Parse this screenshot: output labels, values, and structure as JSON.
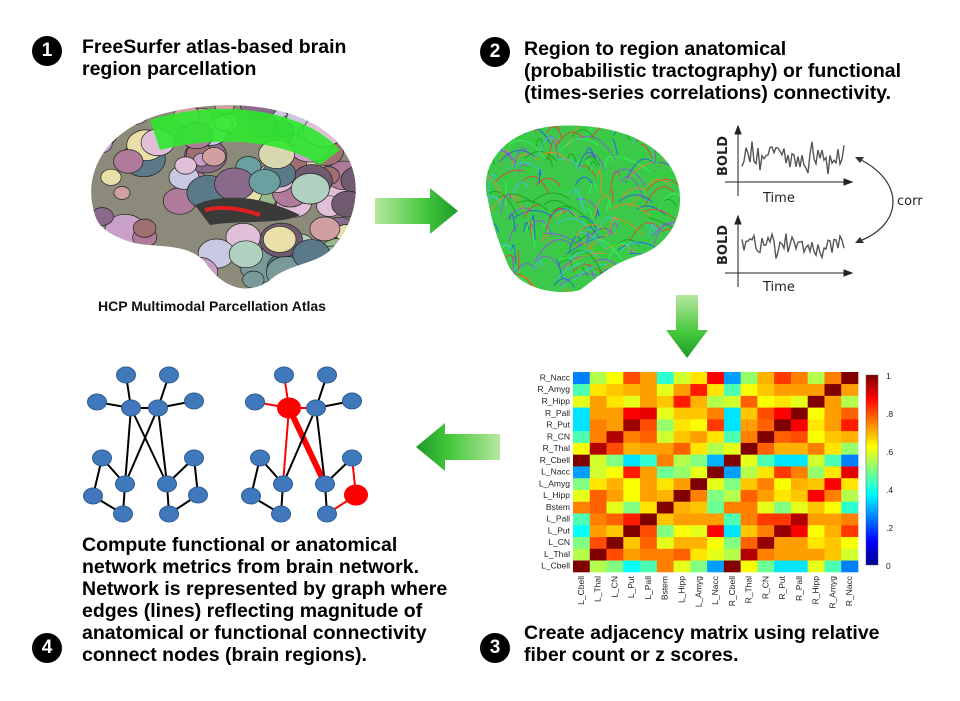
{
  "steps": [
    {
      "number": "1",
      "title": "FreeSurfer atlas-based brain\nregion parcellation",
      "caption": "HCP Multimodal Parcellation Atlas"
    },
    {
      "number": "2",
      "title": "Region to region anatomical\n(probabilistic tractography) or functional\n(times-series correlations) connectivity."
    },
    {
      "number": "3",
      "title": "Create adjacency matrix using relative\nfiber count or z scores."
    },
    {
      "number": "4",
      "title": "Compute functional or anatomical\nnetwork metrics from brain network.\nNetwork is represented by graph where\nedges (lines) reflecting magnitude of\nanatomical or functional connectivity\nconnect nodes (brain regions)."
    }
  ],
  "timeseries": {
    "ylabel": "BOLD",
    "xlabel": "Time",
    "corr_label": "corr"
  },
  "matrix": {
    "columns": [
      "L_Cbell",
      "L_Thal",
      "L_CN",
      "L_Put",
      "L_Pall",
      "Bstem",
      "L_Hipp",
      "L_Amyg",
      "L_Nacc",
      "R_Cbell",
      "R_Thal",
      "R_CN",
      "R_Put",
      "R_Pall",
      "R_Hipp",
      "R_Amyg",
      "R_Nacc"
    ],
    "rows_top_to_bottom": [
      "R_Nacc",
      "R_Amyg",
      "R_Hipp",
      "R_Pall",
      "R_Put",
      "R_CN",
      "R_Thal",
      "R_Cbell",
      "L_Nacc",
      "L_Amyg",
      "L_Hipp",
      "Bstem",
      "L_Pall",
      "L_Put",
      "L_CN",
      "L_Thal",
      "L_Cbell"
    ],
    "colorbar_ticks": [
      "0",
      ".2",
      ".4",
      ".6",
      ".8",
      "1"
    ],
    "colormap": "jet",
    "values_by_column_order": [
      [
        1,
        0.55,
        0.5,
        0.38,
        0.45,
        0.75,
        0.6,
        0.5,
        0.28,
        1,
        0.62,
        0.48,
        0.35,
        0.35,
        0.6,
        0.45,
        0.25
      ],
      [
        0.55,
        1,
        0.8,
        0.72,
        0.75,
        0.75,
        0.78,
        0.65,
        0.6,
        0.55,
        0.95,
        0.75,
        0.72,
        0.72,
        0.72,
        0.68,
        0.58
      ],
      [
        0.5,
        0.8,
        1,
        0.68,
        0.78,
        0.6,
        0.7,
        0.7,
        0.62,
        0.5,
        0.78,
        0.98,
        0.72,
        0.72,
        0.65,
        0.68,
        0.62
      ],
      [
        0.38,
        0.72,
        0.68,
        1,
        0.8,
        0.5,
        0.62,
        0.6,
        0.88,
        0.35,
        0.68,
        0.75,
        0.98,
        0.88,
        0.62,
        0.7,
        0.82
      ],
      [
        0.45,
        0.75,
        0.78,
        0.85,
        1,
        0.68,
        0.72,
        0.72,
        0.72,
        0.45,
        0.75,
        0.82,
        0.82,
        0.95,
        0.72,
        0.72,
        0.75
      ],
      [
        0.75,
        0.78,
        0.6,
        0.5,
        0.65,
        1,
        0.7,
        0.68,
        0.48,
        0.75,
        0.75,
        0.6,
        0.5,
        0.6,
        0.68,
        0.62,
        0.42
      ],
      [
        0.6,
        0.78,
        0.72,
        0.62,
        0.72,
        0.7,
        1,
        0.75,
        0.5,
        0.55,
        0.78,
        0.72,
        0.65,
        0.68,
        0.88,
        0.75,
        0.55
      ],
      [
        0.5,
        0.65,
        0.7,
        0.62,
        0.72,
        0.65,
        0.72,
        1,
        0.6,
        0.5,
        0.68,
        0.75,
        0.62,
        0.7,
        0.68,
        0.88,
        0.65
      ],
      [
        0.28,
        0.58,
        0.62,
        0.85,
        0.72,
        0.48,
        0.52,
        0.6,
        1,
        0.28,
        0.55,
        0.65,
        0.82,
        0.75,
        0.52,
        0.65,
        0.9
      ],
      [
        1,
        0.58,
        0.5,
        0.35,
        0.42,
        0.75,
        0.55,
        0.5,
        0.3,
        1,
        0.6,
        0.45,
        0.35,
        0.35,
        0.58,
        0.45,
        0.25
      ],
      [
        0.62,
        0.95,
        0.8,
        0.7,
        0.72,
        0.72,
        0.78,
        0.65,
        0.55,
        0.6,
        1,
        0.78,
        0.7,
        0.7,
        0.75,
        0.65,
        0.52
      ],
      [
        0.45,
        0.75,
        0.95,
        0.75,
        0.78,
        0.58,
        0.68,
        0.72,
        0.65,
        0.45,
        0.75,
        1,
        0.78,
        0.8,
        0.62,
        0.68,
        0.7
      ],
      [
        0.35,
        0.75,
        0.72,
        0.97,
        0.8,
        0.52,
        0.65,
        0.62,
        0.82,
        0.35,
        0.72,
        0.78,
        1,
        0.88,
        0.65,
        0.72,
        0.85
      ],
      [
        0.35,
        0.72,
        0.72,
        0.88,
        0.9,
        0.6,
        0.68,
        0.68,
        0.75,
        0.35,
        0.68,
        0.8,
        0.88,
        1,
        0.62,
        0.72,
        0.78
      ],
      [
        0.6,
        0.72,
        0.65,
        0.6,
        0.72,
        0.68,
        0.85,
        0.7,
        0.55,
        0.58,
        0.78,
        0.62,
        0.65,
        0.6,
        1,
        0.72,
        0.55
      ],
      [
        0.45,
        0.65,
        0.68,
        0.7,
        0.72,
        0.6,
        0.72,
        0.85,
        0.65,
        0.45,
        0.62,
        0.68,
        0.72,
        0.72,
        0.72,
        1,
        0.72
      ],
      [
        0.25,
        0.55,
        0.62,
        0.8,
        0.72,
        0.42,
        0.58,
        0.65,
        0.88,
        0.28,
        0.52,
        0.7,
        0.82,
        0.75,
        0.55,
        0.75,
        1
      ]
    ]
  },
  "colors": {
    "node": "#3f78bb",
    "node_stroke": "#2e5d96",
    "highlight": "#ff0000",
    "edge": "#000000",
    "arrow": "#3cb43c"
  }
}
